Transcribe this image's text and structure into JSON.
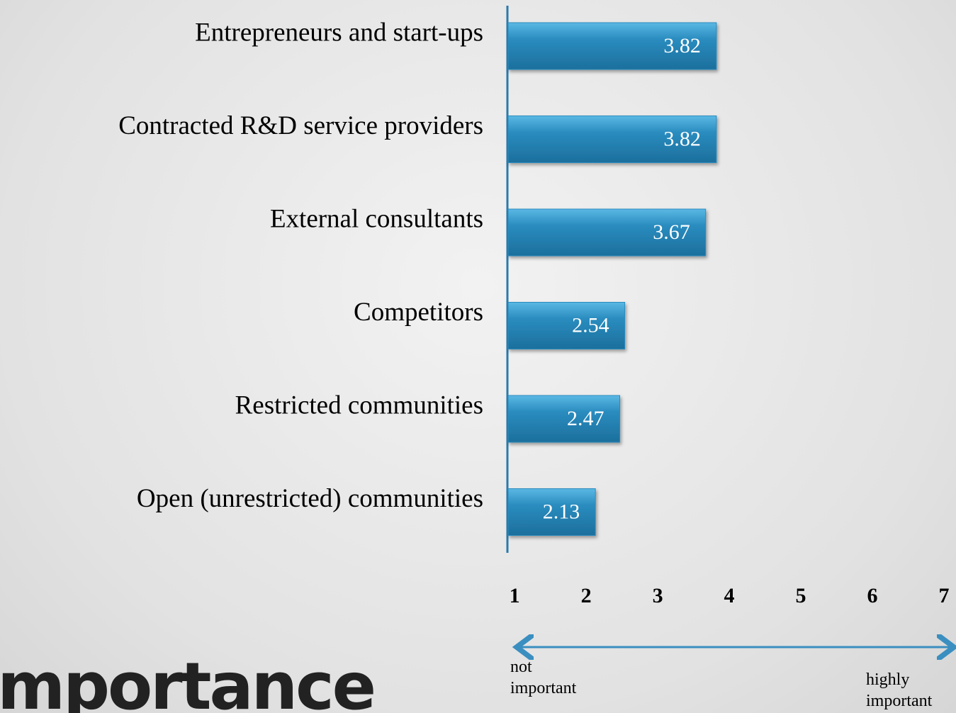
{
  "chart_data": {
    "type": "barh",
    "title": "Importance",
    "categories": [
      "Entrepreneurs and start-ups",
      "Contracted R&D service providers",
      "External consultants",
      "Competitors",
      "Restricted communities",
      "Open (unrestricted) communities"
    ],
    "values": [
      3.82,
      3.82,
      3.67,
      2.54,
      2.47,
      2.13
    ],
    "color": "#2a8cbf",
    "xlim": [
      0.9,
      7
    ],
    "xticks": [
      1,
      2,
      3,
      4,
      5,
      6,
      7
    ],
    "annotations": [
      "not important",
      "highly important"
    ]
  }
}
